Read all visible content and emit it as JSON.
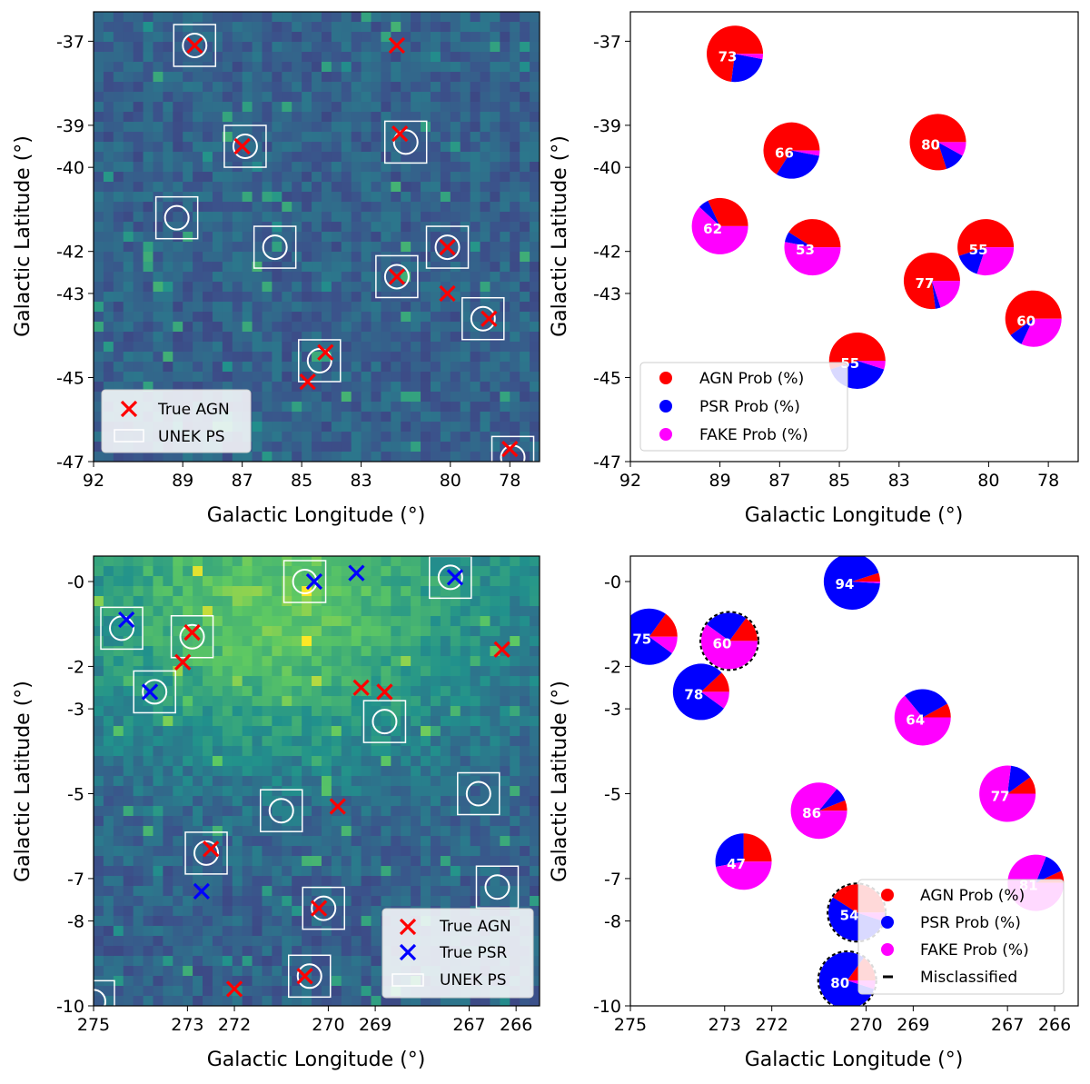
{
  "colors": {
    "agn": "#ff0000",
    "psr": "#0000ff",
    "fake": "#ff00ff",
    "box": "#ffffff",
    "heat_low": "#3b528b",
    "heat_high": "#b5de2b"
  },
  "chart_data": [
    {
      "type": "heatmap",
      "panel": "top-left",
      "xlabel": "Galactic Longitude (°)",
      "ylabel": "Galactic Latitude (°)",
      "xlim": [
        92,
        77
      ],
      "ylim": [
        -47,
        -36.3
      ],
      "xticks": [
        {
          "v": 92,
          "label": "92"
        },
        {
          "v": 89,
          "label": "89"
        },
        {
          "v": 87,
          "label": "87"
        },
        {
          "v": 85,
          "label": "85"
        },
        {
          "v": 83,
          "label": "83"
        },
        {
          "v": 80,
          "label": "80"
        },
        {
          "v": 78,
          "label": "78"
        }
      ],
      "yticks": [
        {
          "v": -37,
          "label": "-37"
        },
        {
          "v": -39,
          "label": "-39"
        },
        {
          "v": -40,
          "label": "-40"
        },
        {
          "v": -42,
          "label": "-42"
        },
        {
          "v": -43,
          "label": "-43"
        },
        {
          "v": -45,
          "label": "-45"
        },
        {
          "v": -47,
          "label": "-47"
        }
      ],
      "true_agn": [
        [
          88.6,
          -37.1
        ],
        [
          81.8,
          -37.1
        ],
        [
          87.0,
          -39.5
        ],
        [
          81.7,
          -39.2
        ],
        [
          80.1,
          -41.9
        ],
        [
          81.8,
          -42.6
        ],
        [
          80.1,
          -43.0
        ],
        [
          78.7,
          -43.6
        ],
        [
          84.2,
          -44.4
        ],
        [
          84.8,
          -45.1
        ],
        [
          78.0,
          -46.7
        ]
      ],
      "true_psr": [],
      "unek_ps": [
        [
          88.6,
          -37.1
        ],
        [
          86.9,
          -39.5
        ],
        [
          81.5,
          -39.4
        ],
        [
          89.2,
          -41.2
        ],
        [
          85.9,
          -41.9
        ],
        [
          80.1,
          -41.9
        ],
        [
          81.8,
          -42.6
        ],
        [
          78.9,
          -43.6
        ],
        [
          84.4,
          -44.6
        ],
        [
          77.9,
          -46.9
        ]
      ],
      "legend": [
        "True AGN",
        "UNEK PS"
      ]
    },
    {
      "type": "pie",
      "panel": "top-right",
      "xlabel": "Galactic Longitude (°)",
      "ylabel": "Galactic Latitude (°)",
      "xlim": [
        92,
        77
      ],
      "ylim": [
        -47,
        -36.3
      ],
      "xticks": [
        {
          "v": 92,
          "label": "92"
        },
        {
          "v": 89,
          "label": "89"
        },
        {
          "v": 87,
          "label": "87"
        },
        {
          "v": 85,
          "label": "85"
        },
        {
          "v": 83,
          "label": "83"
        },
        {
          "v": 80,
          "label": "80"
        },
        {
          "v": 78,
          "label": "78"
        }
      ],
      "yticks": [
        {
          "v": -37,
          "label": "-37"
        },
        {
          "v": -39,
          "label": "-39"
        },
        {
          "v": -40,
          "label": "-40"
        },
        {
          "v": -42,
          "label": "-42"
        },
        {
          "v": -43,
          "label": "-43"
        },
        {
          "v": -45,
          "label": "-45"
        },
        {
          "v": -47,
          "label": "-47"
        }
      ],
      "sources": [
        {
          "x": 88.5,
          "y": -37.3,
          "agn": 73,
          "psr": 24,
          "fake": 3,
          "label": "73",
          "mis": false
        },
        {
          "x": 86.6,
          "y": -39.6,
          "agn": 66,
          "psr": 31,
          "fake": 3,
          "label": "66",
          "mis": false
        },
        {
          "x": 81.7,
          "y": -39.4,
          "agn": 80,
          "psr": 12,
          "fake": 8,
          "label": "80",
          "mis": false
        },
        {
          "x": 89.0,
          "y": -41.4,
          "agn": 32,
          "psr": 6,
          "fake": 62,
          "label": "62",
          "mis": false
        },
        {
          "x": 85.9,
          "y": -41.9,
          "agn": 41,
          "psr": 6,
          "fake": 53,
          "label": "53",
          "mis": false
        },
        {
          "x": 81.9,
          "y": -42.7,
          "agn": 77,
          "psr": 3,
          "fake": 20,
          "label": "77",
          "mis": false
        },
        {
          "x": 80.1,
          "y": -41.9,
          "agn": 55,
          "psr": 15,
          "fake": 30,
          "label": "55",
          "mis": false
        },
        {
          "x": 78.5,
          "y": -43.6,
          "agn": 60,
          "psr": 8,
          "fake": 32,
          "label": "60",
          "mis": false
        },
        {
          "x": 84.4,
          "y": -44.6,
          "agn": 55,
          "psr": 40,
          "fake": 5,
          "label": "55",
          "mis": false
        }
      ],
      "legend": [
        "AGN Prob (%)",
        "PSR Prob (%)",
        "FAKE Prob (%)"
      ]
    },
    {
      "type": "heatmap",
      "panel": "bottom-left",
      "xlabel": "Galactic Longitude (°)",
      "ylabel": "Galactic Latitude (°)",
      "xlim": [
        275,
        265.5
      ],
      "ylim": [
        -10,
        0.6
      ],
      "xticks": [
        {
          "v": 275,
          "label": "275"
        },
        {
          "v": 273,
          "label": "273"
        },
        {
          "v": 272,
          "label": "272"
        },
        {
          "v": 270,
          "label": "270"
        },
        {
          "v": 269,
          "label": "269"
        },
        {
          "v": 267,
          "label": "267"
        },
        {
          "v": 266,
          "label": "266"
        }
      ],
      "yticks": [
        {
          "v": 0,
          "label": "-0"
        },
        {
          "v": -2,
          "label": "-2"
        },
        {
          "v": -3,
          "label": "-3"
        },
        {
          "v": -5,
          "label": "-5"
        },
        {
          "v": -7,
          "label": "-7"
        },
        {
          "v": -8,
          "label": "-8"
        },
        {
          "v": -10,
          "label": "-10"
        }
      ],
      "true_agn": [
        [
          272.9,
          -1.2
        ],
        [
          273.1,
          -1.9
        ],
        [
          269.3,
          -2.5
        ],
        [
          268.8,
          -2.6
        ],
        [
          266.3,
          -1.6
        ],
        [
          269.8,
          -5.3
        ],
        [
          272.5,
          -6.3
        ],
        [
          270.2,
          -7.7
        ],
        [
          270.5,
          -9.3
        ],
        [
          272.0,
          -9.6
        ]
      ],
      "true_psr": [
        [
          274.3,
          -0.9
        ],
        [
          270.3,
          0.0
        ],
        [
          269.4,
          0.2
        ],
        [
          267.3,
          0.1
        ],
        [
          273.8,
          -2.6
        ],
        [
          272.7,
          -7.3
        ]
      ],
      "unek_ps": [
        [
          274.4,
          -1.1
        ],
        [
          272.9,
          -1.3
        ],
        [
          273.7,
          -2.6
        ],
        [
          270.5,
          0.0
        ],
        [
          267.4,
          0.1
        ],
        [
          268.8,
          -3.3
        ],
        [
          266.8,
          -5.0
        ],
        [
          271.0,
          -5.4
        ],
        [
          272.6,
          -6.4
        ],
        [
          270.1,
          -7.7
        ],
        [
          266.4,
          -7.2
        ],
        [
          270.4,
          -9.3
        ],
        [
          275.0,
          -9.9
        ]
      ],
      "legend": [
        "True AGN",
        "True PSR",
        "UNEK PS"
      ]
    },
    {
      "type": "pie",
      "panel": "bottom-right",
      "xlabel": "Galactic Longitude (°)",
      "ylabel": "Galactic Latitude (°)",
      "xlim": [
        275,
        265.5
      ],
      "ylim": [
        -10,
        0.6
      ],
      "xticks": [
        {
          "v": 275,
          "label": "275"
        },
        {
          "v": 273,
          "label": "273"
        },
        {
          "v": 272,
          "label": "272"
        },
        {
          "v": 270,
          "label": "270"
        },
        {
          "v": 269,
          "label": "269"
        },
        {
          "v": 267,
          "label": "267"
        },
        {
          "v": 266,
          "label": "266"
        }
      ],
      "yticks": [
        {
          "v": 0,
          "label": "-0"
        },
        {
          "v": -2,
          "label": "-2"
        },
        {
          "v": -3,
          "label": "-3"
        },
        {
          "v": -5,
          "label": "-5"
        },
        {
          "v": -7,
          "label": "-7"
        },
        {
          "v": -8,
          "label": "-8"
        },
        {
          "v": -10,
          "label": "-10"
        }
      ],
      "sources": [
        {
          "x": 270.3,
          "y": 0.0,
          "agn": 5,
          "psr": 94,
          "fake": 1,
          "label": "94",
          "mis": false
        },
        {
          "x": 274.6,
          "y": -1.3,
          "agn": 15,
          "psr": 75,
          "fake": 10,
          "label": "75",
          "mis": false
        },
        {
          "x": 272.9,
          "y": -1.4,
          "agn": 15,
          "psr": 25,
          "fake": 60,
          "label": "60",
          "mis": true
        },
        {
          "x": 273.5,
          "y": -2.6,
          "agn": 12,
          "psr": 78,
          "fake": 10,
          "label": "78",
          "mis": false
        },
        {
          "x": 268.8,
          "y": -3.2,
          "agn": 8,
          "psr": 28,
          "fake": 64,
          "label": "64",
          "mis": false
        },
        {
          "x": 267.0,
          "y": -5.0,
          "agn": 10,
          "psr": 13,
          "fake": 77,
          "label": "77",
          "mis": false
        },
        {
          "x": 271.0,
          "y": -5.4,
          "agn": 6,
          "psr": 8,
          "fake": 86,
          "label": "86",
          "mis": false
        },
        {
          "x": 272.6,
          "y": -6.6,
          "agn": 25,
          "psr": 28,
          "fake": 47,
          "label": "47",
          "mis": false
        },
        {
          "x": 266.4,
          "y": -7.1,
          "agn": 7,
          "psr": 12,
          "fake": 81,
          "label": "81",
          "mis": false
        },
        {
          "x": 270.2,
          "y": -7.8,
          "agn": 41,
          "psr": 54,
          "fake": 5,
          "label": "54",
          "mis": true
        },
        {
          "x": 270.4,
          "y": -9.4,
          "agn": 15,
          "psr": 80,
          "fake": 5,
          "label": "80",
          "mis": true
        }
      ],
      "legend": [
        "AGN Prob (%)",
        "PSR Prob (%)",
        "FAKE Prob (%)",
        "Misclassified"
      ]
    }
  ]
}
